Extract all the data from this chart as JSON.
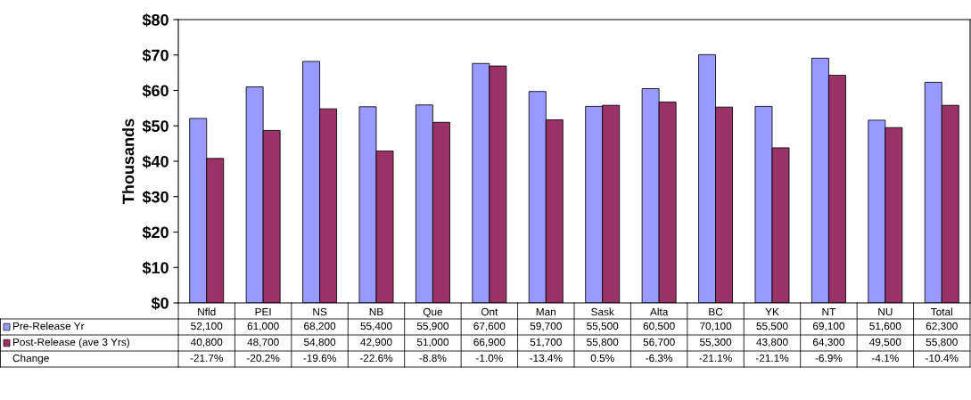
{
  "chart_data": {
    "type": "bar",
    "ylabel": "Thousands",
    "categories": [
      "Nfld",
      "PEI",
      "NS",
      "NB",
      "Que",
      "Ont",
      "Man",
      "Sask",
      "Alta",
      "BC",
      "YK",
      "NT",
      "NU",
      "Total"
    ],
    "series": [
      {
        "name": "Pre-Release Yr",
        "color": "#9999ff",
        "values": [
          52.1,
          61.0,
          68.2,
          55.4,
          55.9,
          67.6,
          59.7,
          55.5,
          60.5,
          70.1,
          55.5,
          69.1,
          51.6,
          62.3
        ]
      },
      {
        "name": "Post-Release (ave 3 Yrs)",
        "color": "#993366",
        "values": [
          40.8,
          48.7,
          54.8,
          42.9,
          51.0,
          66.9,
          51.7,
          55.8,
          56.7,
          55.3,
          43.8,
          64.3,
          49.5,
          55.8
        ]
      }
    ],
    "annotations": [
      "52,100",
      "61,000",
      "68,200",
      "55,400",
      "55,900",
      "67,600",
      "59,700",
      "55,500",
      "60,500",
      "70,100",
      "55,500",
      "69,100",
      "51,600",
      "62,300",
      "40,800",
      "48,700",
      "54,800",
      "42,900",
      "51,000",
      "66,900",
      "51,700",
      "55,800",
      "56,700",
      "55,300",
      "43,800",
      "64,300",
      "49,500",
      "55,800",
      "Change",
      "-21.7%",
      "-20.2%",
      "-19.6%",
      "-22.6%",
      "-8.8%",
      "-1.0%",
      "-13.4%",
      "0.5%",
      "-6.3%",
      "-21.1%",
      "-21.1%",
      "-6.9%",
      "-4.1%",
      "-10.4%"
    ],
    "ylim": [
      0,
      80
    ],
    "yticks": [
      {
        "value": 0,
        "label": "$0"
      },
      {
        "value": 10,
        "label": "$10"
      },
      {
        "value": 20,
        "label": "$20"
      },
      {
        "value": 30,
        "label": "$30"
      },
      {
        "value": 40,
        "label": "$40"
      },
      {
        "value": 50,
        "label": "$50"
      },
      {
        "value": 60,
        "label": "$60"
      },
      {
        "value": 70,
        "label": "$70"
      },
      {
        "value": 80,
        "label": "$80"
      }
    ],
    "grid": false,
    "legend": "bottom left"
  }
}
